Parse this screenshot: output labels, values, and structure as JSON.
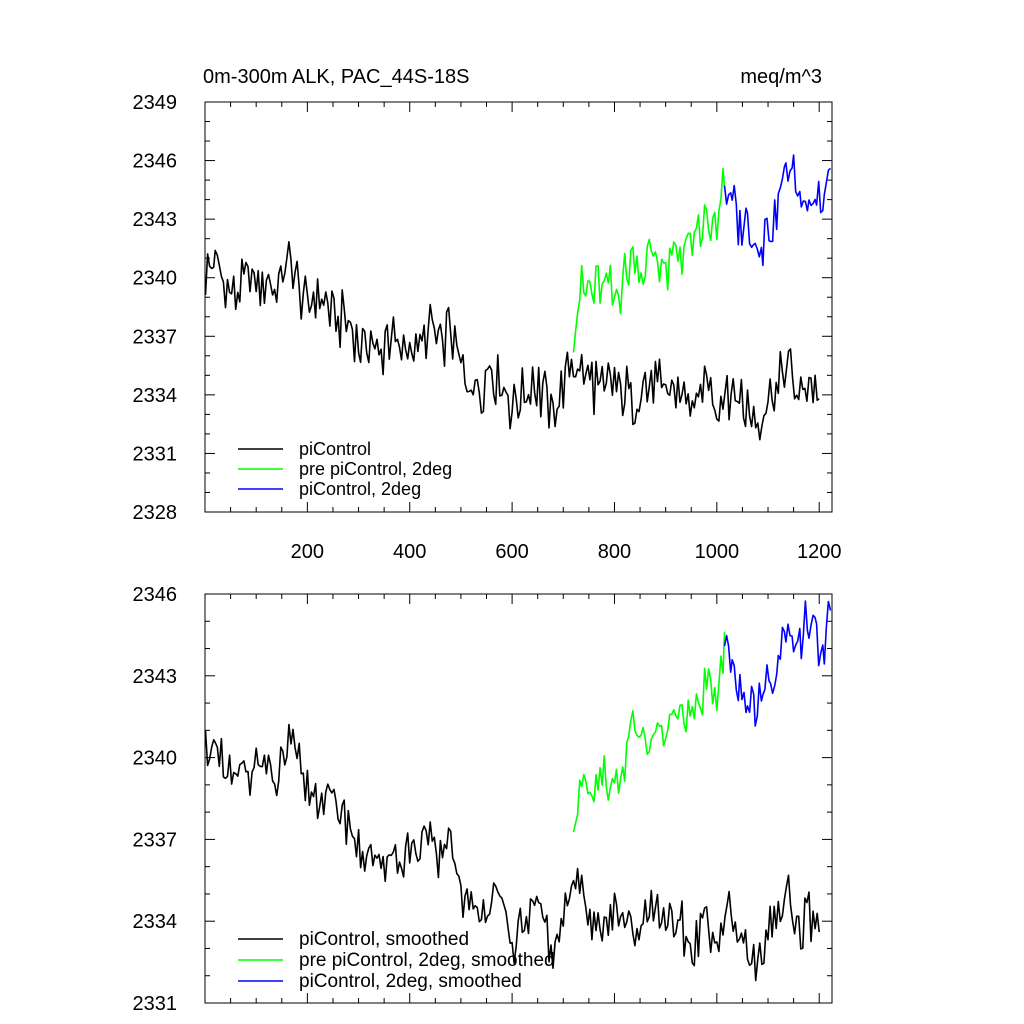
{
  "figure": {
    "title_left": "0m-300m ALK, PAC_44S-18S",
    "title_right": "meq/m^3"
  },
  "chart_data": [
    {
      "type": "line",
      "title": "0m-300m ALK, PAC_44S-18S",
      "units": "meq/m^3",
      "xlim": [
        0,
        1225
      ],
      "ylim": [
        2328,
        2349
      ],
      "x_ticks": [
        200,
        400,
        600,
        800,
        1000,
        1200
      ],
      "x_tick_labels": [
        "200",
        "400",
        "600",
        "800",
        "1000",
        "1200"
      ],
      "y_ticks": [
        2328,
        2331,
        2334,
        2337,
        2340,
        2343,
        2346,
        2349
      ],
      "y_tick_labels": [
        "2328",
        "2331",
        "2334",
        "2337",
        "2340",
        "2343",
        "2346",
        "2349"
      ],
      "legend_position": "bottom-left",
      "series": [
        {
          "name": "piControl",
          "color": "#000000",
          "x": [
            1,
            20,
            40,
            60,
            80,
            100,
            120,
            140,
            160,
            180,
            200,
            220,
            240,
            260,
            280,
            300,
            320,
            340,
            360,
            380,
            400,
            420,
            440,
            460,
            480,
            500,
            520,
            540,
            560,
            580,
            600,
            620,
            640,
            660,
            680,
            700,
            720,
            740,
            760,
            780,
            800,
            820,
            840,
            860,
            880,
            900,
            920,
            940,
            960,
            980,
            1000,
            1020,
            1040,
            1060,
            1080,
            1100,
            1120,
            1140,
            1160,
            1180,
            1200
          ],
          "y": [
            2340.2,
            2340.8,
            2339.5,
            2339.0,
            2339.6,
            2340.0,
            2339.8,
            2339.4,
            2340.6,
            2339.8,
            2338.6,
            2339.0,
            2338.4,
            2338.0,
            2337.6,
            2336.4,
            2336.8,
            2336.0,
            2337.2,
            2336.2,
            2336.8,
            2336.4,
            2337.6,
            2336.2,
            2337.4,
            2335.0,
            2334.6,
            2334.2,
            2335.4,
            2334.6,
            2333.4,
            2334.0,
            2334.8,
            2334.0,
            2333.4,
            2334.4,
            2335.6,
            2335.0,
            2334.6,
            2334.2,
            2334.8,
            2334.2,
            2333.4,
            2334.4,
            2334.6,
            2333.8,
            2334.4,
            2333.8,
            2333.4,
            2334.6,
            2333.6,
            2334.6,
            2334.0,
            2333.4,
            2332.6,
            2333.8,
            2334.4,
            2335.2,
            2333.6,
            2334.8,
            2333.8
          ]
        },
        {
          "name": "pre piControl, 2deg",
          "color": "#00ff00",
          "x": [
            720,
            740,
            760,
            780,
            800,
            820,
            840,
            860,
            880,
            900,
            920,
            940,
            960,
            980,
            1000,
            1015
          ],
          "y": [
            2337.8,
            2339.6,
            2339.4,
            2339.8,
            2339.0,
            2339.8,
            2341.6,
            2340.2,
            2341.4,
            2340.2,
            2341.8,
            2341.4,
            2342.0,
            2342.6,
            2342.2,
            2344.6
          ]
        },
        {
          "name": "piControl, 2deg",
          "color": "#0000ff",
          "x": [
            1015,
            1030,
            1045,
            1060,
            1075,
            1090,
            1105,
            1120,
            1135,
            1150,
            1165,
            1180,
            1195,
            1210,
            1222
          ],
          "y": [
            2344.6,
            2343.6,
            2342.8,
            2342.4,
            2341.8,
            2342.0,
            2342.8,
            2344.0,
            2345.4,
            2344.8,
            2344.0,
            2344.6,
            2344.2,
            2343.8,
            2345.6
          ]
        }
      ]
    },
    {
      "type": "line",
      "xlim": [
        0,
        1225
      ],
      "ylim": [
        2331,
        2346
      ],
      "x_ticks": [
        200,
        400,
        600,
        800,
        1000,
        1200
      ],
      "y_ticks": [
        2331,
        2334,
        2337,
        2340,
        2343,
        2346
      ],
      "y_tick_labels": [
        "2331",
        "2334",
        "2337",
        "2340",
        "2343",
        "2346"
      ],
      "legend_position": "bottom-left",
      "series": [
        {
          "name": "piControl, smoothed",
          "color": "#000000",
          "x": [
            1,
            20,
            40,
            60,
            80,
            100,
            120,
            140,
            160,
            180,
            200,
            220,
            240,
            260,
            280,
            300,
            320,
            340,
            360,
            380,
            400,
            420,
            440,
            460,
            480,
            500,
            520,
            540,
            560,
            580,
            600,
            620,
            640,
            660,
            680,
            700,
            720,
            740,
            760,
            780,
            800,
            820,
            840,
            860,
            880,
            900,
            920,
            940,
            960,
            980,
            1000,
            1020,
            1040,
            1060,
            1080,
            1100,
            1120,
            1140,
            1160,
            1180,
            1200
          ],
          "y": [
            2340.6,
            2340.2,
            2339.4,
            2339.0,
            2339.6,
            2339.8,
            2339.4,
            2339.0,
            2340.4,
            2339.8,
            2338.8,
            2338.6,
            2338.4,
            2338.2,
            2337.8,
            2336.4,
            2336.6,
            2335.6,
            2336.8,
            2336.0,
            2336.6,
            2336.0,
            2337.4,
            2336.0,
            2337.4,
            2335.0,
            2334.2,
            2334.4,
            2335.2,
            2334.4,
            2333.2,
            2333.6,
            2334.4,
            2333.8,
            2333.0,
            2334.0,
            2335.6,
            2334.8,
            2334.2,
            2333.6,
            2334.6,
            2333.8,
            2333.2,
            2334.0,
            2334.6,
            2333.6,
            2334.2,
            2333.4,
            2333.0,
            2334.4,
            2333.0,
            2334.4,
            2333.6,
            2333.0,
            2332.2,
            2333.8,
            2334.2,
            2335.0,
            2333.2,
            2334.2,
            2333.6
          ]
        },
        {
          "name": "pre piControl, 2deg, smoothed",
          "color": "#00ff00",
          "x": [
            720,
            740,
            760,
            780,
            800,
            820,
            840,
            860,
            880,
            900,
            920,
            940,
            960,
            980,
            1000,
            1015
          ],
          "y": [
            2337.2,
            2339.4,
            2339.0,
            2339.6,
            2339.0,
            2339.8,
            2341.6,
            2340.2,
            2341.2,
            2340.4,
            2341.8,
            2341.4,
            2341.8,
            2342.6,
            2342.0,
            2344.6
          ]
        },
        {
          "name": "piControl, 2deg, smoothed",
          "color": "#0000ff",
          "x": [
            1015,
            1030,
            1045,
            1060,
            1075,
            1090,
            1105,
            1120,
            1135,
            1150,
            1165,
            1180,
            1195,
            1210,
            1222
          ],
          "y": [
            2344.0,
            2343.4,
            2342.8,
            2342.4,
            2341.8,
            2342.6,
            2342.8,
            2343.6,
            2344.6,
            2344.8,
            2344.2,
            2345.2,
            2344.4,
            2343.8,
            2345.4
          ]
        }
      ]
    }
  ]
}
